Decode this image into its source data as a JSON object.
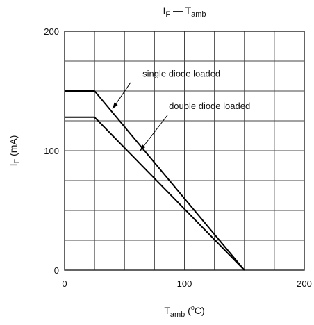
{
  "chart_data": {
    "type": "line",
    "title": {
      "base": "I",
      "sub": "F",
      "separator": " — ",
      "base2": "T",
      "sub2": "amb"
    },
    "xlabel": {
      "base": "T",
      "sub": "amb",
      "suffix_open": " (",
      "sup": "o",
      "unit": "C",
      "suffix_close": ")"
    },
    "ylabel": {
      "base": "I",
      "sub": "F",
      "suffix": " (mA)"
    },
    "xlim": [
      0,
      200
    ],
    "ylim": [
      0,
      200
    ],
    "x_grid_step": 25,
    "y_grid_step": 25,
    "grid": true,
    "x_tick_labels": [
      {
        "value": 0,
        "label": "0"
      },
      {
        "value": 100,
        "label": "100"
      },
      {
        "value": 200,
        "label": "200"
      }
    ],
    "y_tick_labels": [
      {
        "value": 0,
        "label": "0"
      },
      {
        "value": 100,
        "label": "100"
      },
      {
        "value": 200,
        "label": "200"
      }
    ],
    "series": [
      {
        "id": "single",
        "points": [
          [
            0,
            150
          ],
          [
            25,
            150
          ],
          [
            150,
            0
          ]
        ]
      },
      {
        "id": "double",
        "points": [
          [
            0,
            128
          ],
          [
            25,
            128
          ],
          [
            150,
            0
          ]
        ]
      }
    ],
    "annotations": [
      {
        "series": "single",
        "text": "single diode loaded",
        "text_anchor": [
          65,
          162
        ],
        "arrow_from": [
          55,
          157
        ],
        "arrow_to": [
          40,
          135
        ]
      },
      {
        "series": "double",
        "text": "double diode loaded",
        "text_anchor": [
          87,
          135
        ],
        "arrow_from": [
          86,
          130
        ],
        "arrow_to": [
          63,
          100
        ]
      }
    ],
    "colors": {
      "grid": "#444444",
      "line": "#000000",
      "text": "#111111",
      "background": "#ffffff"
    }
  }
}
